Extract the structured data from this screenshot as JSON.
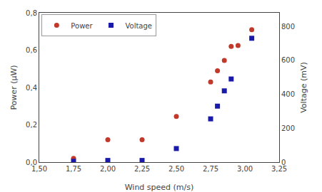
{
  "chart_data": {
    "type": "scatter",
    "xlabel": "Wind speed (m/s)",
    "ylabel": "Power (μW)",
    "y2label": "Voltage (mV)",
    "series": [
      {
        "name": "Power",
        "color": "#c0392b",
        "marker": "circle",
        "x": [
          1.75,
          2.0,
          2.25,
          2.5,
          2.75,
          2.8,
          2.85,
          2.9,
          2.95,
          3.05
        ],
        "values": [
          0.02,
          0.12,
          0.12,
          0.245,
          0.43,
          0.49,
          0.545,
          0.62,
          0.625,
          0.71
        ]
      },
      {
        "name": "Voltage",
        "color": "#1a1aaa",
        "marker": "square",
        "axis": "y2",
        "x": [
          1.75,
          2.0,
          2.25,
          2.5,
          2.75,
          2.8,
          2.85,
          2.9,
          3.05
        ],
        "values": [
          5,
          10,
          10,
          80,
          255,
          330,
          420,
          490,
          730
        ]
      }
    ],
    "xlim": [
      1.5,
      3.25
    ],
    "xticks": [
      {
        "value": 1.5,
        "label": "1,50"
      },
      {
        "value": 1.75,
        "label": "1,75"
      },
      {
        "value": 2.0,
        "label": "2,00"
      },
      {
        "value": 2.25,
        "label": "2,25"
      },
      {
        "value": 2.5,
        "label": "2,50"
      },
      {
        "value": 2.75,
        "label": "2,75"
      },
      {
        "value": 3.0,
        "label": "3,00"
      },
      {
        "value": 3.25,
        "label": "3,25"
      }
    ],
    "ylim": [
      0,
      0.8
    ],
    "yticks": [
      {
        "value": 0.0,
        "label": "0,0"
      },
      {
        "value": 0.2,
        "label": "0,2"
      },
      {
        "value": 0.4,
        "label": "0,4"
      },
      {
        "value": 0.6,
        "label": "0,6"
      },
      {
        "value": 0.8,
        "label": "0,8"
      }
    ],
    "y2lim": [
      0,
      880
    ],
    "y2ticks": [
      0,
      200,
      400,
      600,
      800
    ],
    "grid": false,
    "legend": "upper left"
  }
}
